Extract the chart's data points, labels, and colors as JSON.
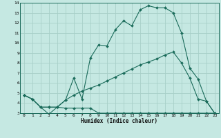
{
  "xlabel": "Humidex (Indice chaleur)",
  "bg_color": "#c5e8e2",
  "grid_color": "#a8d0c8",
  "line_color": "#1a6b5a",
  "xlim": [
    -0.5,
    23.5
  ],
  "ylim": [
    3,
    14
  ],
  "xticks": [
    0,
    1,
    2,
    3,
    4,
    5,
    6,
    7,
    8,
    9,
    10,
    11,
    12,
    13,
    14,
    15,
    16,
    17,
    18,
    19,
    20,
    21,
    22,
    23
  ],
  "yticks": [
    3,
    4,
    5,
    6,
    7,
    8,
    9,
    10,
    11,
    12,
    13,
    14
  ],
  "line1_x": [
    0,
    1,
    2,
    3,
    4,
    5,
    6,
    7,
    8,
    9,
    10,
    11,
    12,
    13,
    14,
    15,
    16,
    17,
    18,
    19,
    20,
    21,
    22,
    23
  ],
  "line1_y": [
    4.8,
    4.4,
    3.6,
    2.9,
    3.6,
    3.5,
    3.5,
    3.5,
    3.5,
    3.0,
    3.0,
    3.0,
    3.0,
    3.0,
    3.0,
    3.0,
    3.0,
    3.0,
    3.0,
    3.0,
    3.0,
    3.0,
    3.0,
    3.0
  ],
  "line2_x": [
    0,
    1,
    2,
    3,
    4,
    5,
    6,
    7,
    8,
    9,
    10,
    11,
    12,
    13,
    14,
    15,
    16,
    17,
    18,
    19,
    20,
    21,
    22,
    23
  ],
  "line2_y": [
    4.8,
    4.4,
    3.6,
    3.6,
    3.6,
    4.3,
    6.5,
    4.4,
    8.5,
    9.8,
    9.7,
    11.3,
    12.2,
    11.7,
    13.3,
    13.7,
    13.5,
    13.5,
    13.0,
    11.0,
    7.5,
    6.4,
    4.2,
    3.0
  ],
  "line3_x": [
    0,
    1,
    2,
    3,
    4,
    5,
    6,
    7,
    8,
    9,
    10,
    11,
    12,
    13,
    14,
    15,
    16,
    17,
    18,
    19,
    20,
    21,
    22,
    23
  ],
  "line3_y": [
    4.8,
    4.4,
    3.6,
    3.6,
    3.6,
    4.3,
    4.8,
    5.2,
    5.5,
    5.8,
    6.2,
    6.6,
    7.0,
    7.4,
    7.8,
    8.1,
    8.4,
    8.8,
    9.1,
    8.0,
    6.5,
    4.4,
    4.2,
    3.0
  ]
}
